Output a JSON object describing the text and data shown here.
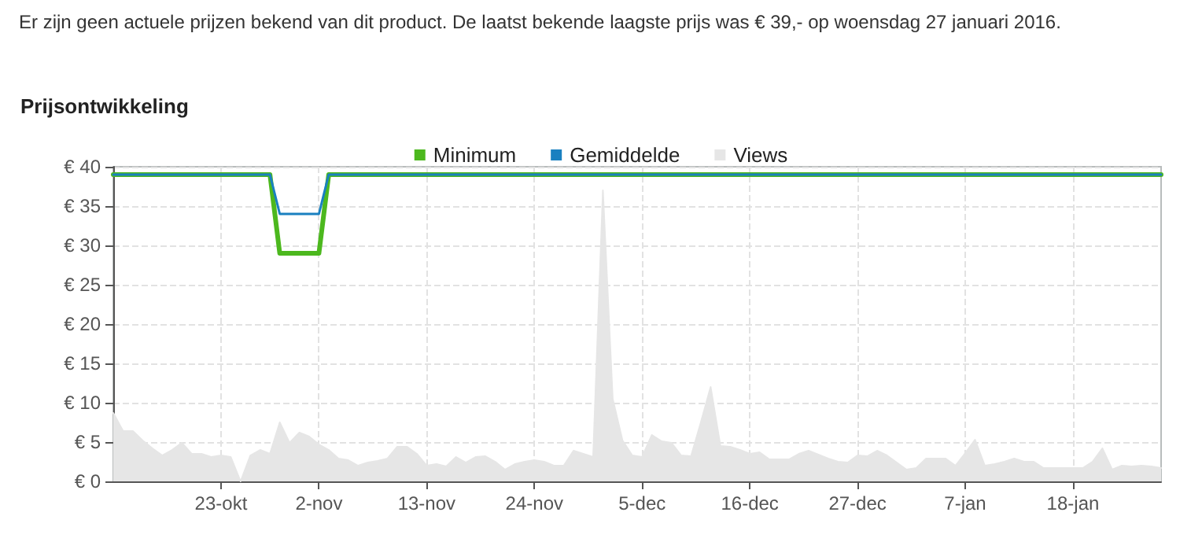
{
  "chart_data": {
    "type": "line",
    "title": "Prijsontwikkeling",
    "annotations": [
      "Er zijn geen actuele prijzen bekend van dit product. De laatst bekende laagste prijs was € 39,- op woensdag 27 januari 2016."
    ],
    "xlim": [
      "2015-10-12",
      "2016-01-27"
    ],
    "xticks": [
      {
        "value": "2015-10-23",
        "label": "23-okt"
      },
      {
        "value": "2015-11-02",
        "label": "2-nov"
      },
      {
        "value": "2015-11-13",
        "label": "13-nov"
      },
      {
        "value": "2015-11-24",
        "label": "24-nov"
      },
      {
        "value": "2015-12-05",
        "label": "5-dec"
      },
      {
        "value": "2015-12-16",
        "label": "16-dec"
      },
      {
        "value": "2015-12-27",
        "label": "27-dec"
      },
      {
        "value": "2016-01-07",
        "label": "7-jan"
      },
      {
        "value": "2016-01-18",
        "label": "18-jan"
      }
    ],
    "ylim": [
      0,
      40
    ],
    "yticks": [
      {
        "value": 0,
        "label": "€ 0"
      },
      {
        "value": 5,
        "label": "€ 5"
      },
      {
        "value": 10,
        "label": "€ 10"
      },
      {
        "value": 15,
        "label": "€ 15"
      },
      {
        "value": 20,
        "label": "€ 20"
      },
      {
        "value": 25,
        "label": "€ 25"
      },
      {
        "value": 30,
        "label": "€ 30"
      },
      {
        "value": 35,
        "label": "€ 35"
      },
      {
        "value": 40,
        "label": "€ 40"
      }
    ],
    "grid": true,
    "legend": "top",
    "marker": "none",
    "line_style": "solid",
    "series": [
      {
        "name": "Minimum",
        "color": "#4cb81e",
        "x": [
          "2015-10-12",
          "2015-10-28",
          "2015-10-29",
          "2015-11-02",
          "2015-11-03",
          "2016-01-27"
        ],
        "values": [
          39,
          39,
          29,
          29,
          39,
          39
        ]
      },
      {
        "name": "Gemiddelde",
        "color": "#1a80c0",
        "x": [
          "2015-10-12",
          "2015-10-28",
          "2015-10-29",
          "2015-11-02",
          "2015-11-03",
          "2016-01-27"
        ],
        "values": [
          39,
          39,
          34,
          34,
          39,
          39
        ]
      },
      {
        "name": "Views",
        "type": "area",
        "color": "#e6e6e6",
        "x": [
          "2015-10-12",
          "2015-10-13",
          "2015-10-14",
          "2015-10-15",
          "2015-10-16",
          "2015-10-17",
          "2015-10-18",
          "2015-10-19",
          "2015-10-20",
          "2015-10-21",
          "2015-10-22",
          "2015-10-23",
          "2015-10-24",
          "2015-10-25",
          "2015-10-26",
          "2015-10-27",
          "2015-10-28",
          "2015-10-29",
          "2015-10-30",
          "2015-10-31",
          "2015-11-01",
          "2015-11-02",
          "2015-11-03",
          "2015-11-04",
          "2015-11-05",
          "2015-11-06",
          "2015-11-07",
          "2015-11-08",
          "2015-11-09",
          "2015-11-10",
          "2015-11-11",
          "2015-11-12",
          "2015-11-13",
          "2015-11-14",
          "2015-11-15",
          "2015-11-16",
          "2015-11-17",
          "2015-11-18",
          "2015-11-19",
          "2015-11-20",
          "2015-11-21",
          "2015-11-22",
          "2015-11-23",
          "2015-11-24",
          "2015-11-25",
          "2015-11-26",
          "2015-11-27",
          "2015-11-28",
          "2015-11-29",
          "2015-11-30",
          "2015-12-01",
          "2015-12-02",
          "2015-12-03",
          "2015-12-04",
          "2015-12-05",
          "2015-12-06",
          "2015-12-07",
          "2015-12-08",
          "2015-12-09",
          "2015-12-10",
          "2015-12-11",
          "2015-12-12",
          "2015-12-13",
          "2015-12-14",
          "2015-12-15",
          "2015-12-16",
          "2015-12-17",
          "2015-12-18",
          "2015-12-19",
          "2015-12-20",
          "2015-12-21",
          "2015-12-22",
          "2015-12-23",
          "2015-12-24",
          "2015-12-25",
          "2015-12-26",
          "2015-12-27",
          "2015-12-28",
          "2015-12-29",
          "2015-12-30",
          "2015-12-31",
          "2016-01-01",
          "2016-01-02",
          "2016-01-03",
          "2016-01-04",
          "2016-01-05",
          "2016-01-06",
          "2016-01-07",
          "2016-01-08",
          "2016-01-09",
          "2016-01-10",
          "2016-01-11",
          "2016-01-12",
          "2016-01-13",
          "2016-01-14",
          "2016-01-15",
          "2016-01-16",
          "2016-01-17",
          "2016-01-18",
          "2016-01-19",
          "2016-01-20",
          "2016-01-21",
          "2016-01-22",
          "2016-01-23",
          "2016-01-24",
          "2016-01-25",
          "2016-01-26",
          "2016-01-27"
        ],
        "values": [
          8.7,
          6.4,
          6.4,
          5.2,
          4.2,
          3.3,
          4,
          4.9,
          3.5,
          3.5,
          3.1,
          3.3,
          3.1,
          0,
          3.3,
          4,
          3.5,
          7.5,
          4.9,
          6.2,
          5.7,
          4.7,
          4,
          2.9,
          2.7,
          2,
          2.4,
          2.6,
          2.9,
          4.4,
          4.4,
          3.5,
          2,
          2.2,
          1.9,
          3.1,
          2.4,
          3.1,
          3.2,
          2.5,
          1.5,
          2.2,
          2.5,
          2.7,
          2.5,
          2,
          2,
          3.9,
          3.5,
          3.1,
          37,
          10.5,
          5.2,
          3.3,
          3.1,
          5.9,
          5.1,
          4.9,
          3.3,
          3.2,
          7.5,
          12,
          4.5,
          4.4,
          4,
          3.5,
          3.7,
          2.8,
          2.8,
          2.8,
          3.5,
          3.9,
          3.4,
          2.9,
          2.5,
          2.4,
          3.3,
          3.2,
          3.9,
          3.3,
          2.4,
          1.5,
          1.7,
          2.9,
          2.9,
          2.9,
          2,
          3.6,
          5.3,
          2,
          2.2,
          2.5,
          2.9,
          2.5,
          2.5,
          1.7,
          1.7,
          1.7,
          1.7,
          1.7,
          2.5,
          4.2,
          1.5,
          2,
          1.9,
          2,
          1.9,
          1.7
        ]
      }
    ]
  }
}
